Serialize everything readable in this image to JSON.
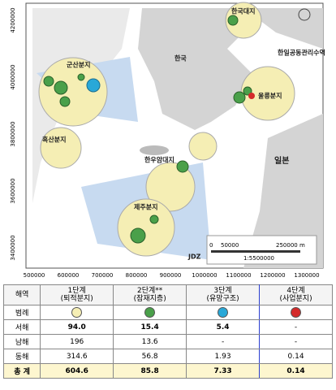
{
  "map": {
    "labels": {
      "korea_plateau": "한국대지",
      "korea": "한국",
      "gunsan": "군산분지",
      "heuksan": "흑산분지",
      "haewooam": "한우암대지",
      "jeju": "제주분지",
      "ulleung": "울릉분지",
      "jdz_joint": "한일공동관리수역",
      "japan": "일본",
      "jdz": "JDZ"
    },
    "xticks": [
      "500000",
      "600000",
      "700000",
      "800000",
      "900000",
      "1000000",
      "1100000",
      "1200000",
      "1300000"
    ],
    "yticks": [
      "4200000",
      "4000000",
      "3800000",
      "3600000",
      "3400000"
    ],
    "scale": {
      "zero": "0",
      "mid": "50000",
      "end": "250000 m",
      "ratio": "1:5500000"
    }
  },
  "table": {
    "header": [
      "해역",
      "1단계",
      "2단계**",
      "3단계",
      "4단계"
    ],
    "subheader": [
      "(퇴적분지)",
      "(잠재지층)",
      "(유망구조)",
      "(사업분지)"
    ],
    "legend_label": "범례",
    "rows": [
      [
        "서해",
        "94.0",
        "15.4",
        "5.4",
        "-"
      ],
      [
        "남해",
        "196",
        "13.6",
        "-",
        "-"
      ],
      [
        "동해",
        "314.6",
        "56.8",
        "1.93",
        "0.14"
      ],
      [
        "총 계",
        "604.6",
        "85.8",
        "7.33",
        "0.14"
      ]
    ]
  }
}
